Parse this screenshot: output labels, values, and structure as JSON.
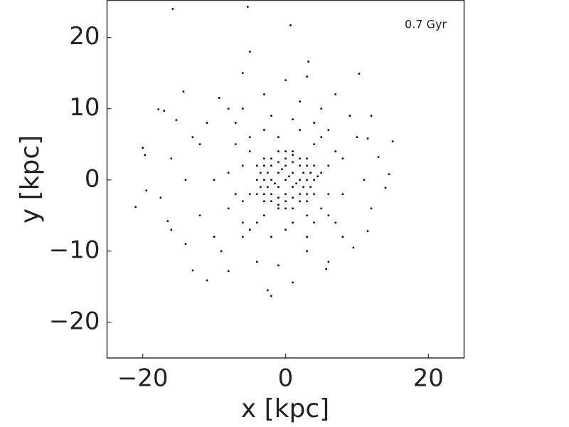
{
  "chart_data": {
    "type": "scatter",
    "annotation": "0.7 Gyr",
    "xlabel": "x [kpc]",
    "ylabel": "y [kpc]",
    "xlim": [
      -25,
      25
    ],
    "ylim": [
      -25,
      25.2
    ],
    "xticks": [
      {
        "value": -20,
        "label": "−20"
      },
      0,
      20
    ],
    "yticks": [
      {
        "value": -20,
        "label": "−20"
      },
      {
        "value": -10,
        "label": "−10"
      },
      0,
      10,
      20
    ],
    "color": "#000000",
    "x": [
      -15.8,
      -5.3,
      0.7,
      -5,
      3.2,
      3,
      10.3,
      -6,
      0,
      -9.3,
      -14.3,
      -17.8,
      -17,
      -15.3,
      -20,
      -19.7,
      -21,
      -19.5,
      -17.5,
      15,
      14,
      13,
      11.5,
      14.5,
      -16.5,
      -16,
      -13,
      -11,
      -2.5,
      -2,
      1,
      5.7,
      9.5,
      11.5,
      -8,
      -4,
      6,
      -10,
      8,
      9,
      -8,
      -12,
      -12,
      12,
      11,
      -14,
      7,
      -3,
      5,
      -6,
      2,
      -11,
      -10,
      10,
      -9,
      3,
      -1,
      -6,
      7,
      8,
      -8,
      -7,
      6,
      -5,
      -13,
      12,
      -14,
      -16,
      -7,
      4,
      -2,
      1,
      7,
      8,
      6,
      3,
      -2,
      -6,
      -8,
      -7,
      -5,
      5,
      6,
      6,
      4,
      0,
      -4,
      -6,
      -6,
      -3,
      2,
      -1,
      4,
      5,
      1,
      -3,
      -5,
      -5,
      5,
      3,
      0,
      1,
      -1,
      1,
      -1,
      2,
      -2,
      0,
      0,
      2,
      -2,
      2,
      -2,
      3,
      -3,
      0,
      0,
      3,
      -3,
      3,
      -3,
      2,
      -2,
      2,
      -2,
      4,
      -4,
      0,
      0,
      4,
      -4,
      4,
      -4,
      1,
      -1,
      1,
      -1,
      3,
      -3,
      3,
      -3,
      0.5,
      -0.5,
      1.5,
      -1.5,
      2.5,
      -2.5,
      1,
      -1,
      2.5,
      -2.5,
      1,
      -1,
      3.5,
      -3.5,
      1,
      -1,
      3.5,
      -3.5,
      4.5
    ],
    "values": [
      24,
      24.3,
      21.7,
      18,
      16.6,
      14.5,
      14.9,
      15,
      14,
      11.5,
      12.4,
      9.9,
      9.7,
      8.4,
      4.5,
      3.5,
      -3.8,
      -1.5,
      -2.5,
      5.4,
      -1.1,
      3.2,
      5.8,
      0.8,
      -5.8,
      -7,
      -12.7,
      -14.1,
      -15.5,
      -16.3,
      -14.4,
      -12.5,
      -9.5,
      -7.2,
      -12.8,
      -11.5,
      -11.5,
      -8,
      -8,
      9,
      10,
      5,
      -5,
      -4,
      0,
      0,
      12,
      12,
      10,
      10,
      11,
      8,
      0,
      6,
      -10,
      -10,
      -12,
      -8,
      -6,
      3,
      -4,
      5,
      7,
      -7,
      6,
      9,
      -9,
      3,
      8,
      8,
      9,
      8.5,
      4,
      -2,
      -5,
      -8,
      -8,
      -6,
      1,
      -2,
      6,
      6,
      2,
      -2,
      -6,
      -7,
      -6,
      -3,
      2,
      7,
      7,
      6,
      5,
      -4,
      -6,
      -5,
      4,
      -2,
      1,
      -5,
      0,
      1,
      1,
      -1,
      -1,
      0,
      0,
      2,
      -2,
      2,
      2,
      -2,
      -2,
      0,
      0,
      3,
      -3,
      2,
      2,
      -2,
      -2,
      3,
      3,
      -3,
      -3,
      0,
      0,
      4,
      -4,
      2,
      2,
      -2,
      -2,
      4,
      4,
      -4,
      -4,
      3,
      3,
      -3,
      -3,
      0.5,
      1.5,
      -0.5,
      -0.5,
      1,
      1,
      2.5,
      -2.5,
      -1,
      -1,
      -2.5,
      2.5,
      1,
      -1,
      3.5,
      -3.5,
      -1,
      1,
      0.5
    ]
  }
}
